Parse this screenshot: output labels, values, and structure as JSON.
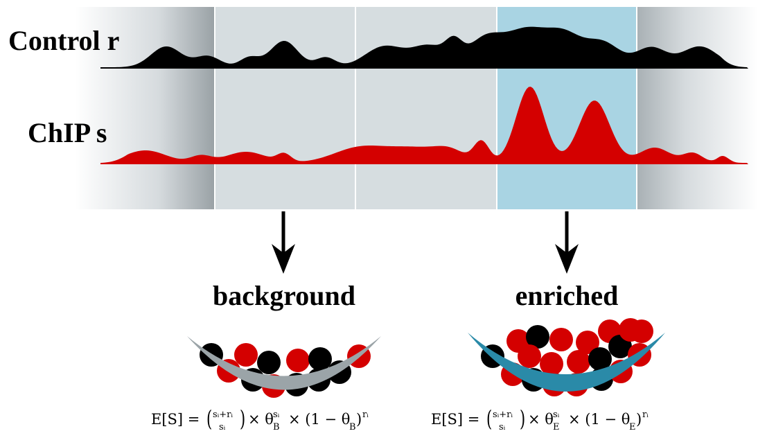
{
  "tracks": [
    {
      "label": "Control r"
    },
    {
      "label": "ChIP s"
    }
  ],
  "groups": [
    {
      "label": "background",
      "formula": {
        "lhs": "E[S] =",
        "top": "sᵢ+rᵢ",
        "bottom": "sᵢ",
        "times1": "× θ",
        "sub1": "B",
        "sup1": "sᵢ",
        "times2": "× (1 − θ",
        "sub2": "B",
        "close": ")",
        "sup2": "rᵢ"
      }
    },
    {
      "label": "enriched",
      "formula": {
        "lhs": "E[S] =",
        "top": "sᵢ+rᵢ",
        "bottom": "sᵢ",
        "times1": "× θ",
        "sub1": "E",
        "sup1": "sᵢ",
        "times2": "× (1 − θ",
        "sub2": "E",
        "close": ")",
        "sup2": "rᵢ"
      }
    }
  ]
}
